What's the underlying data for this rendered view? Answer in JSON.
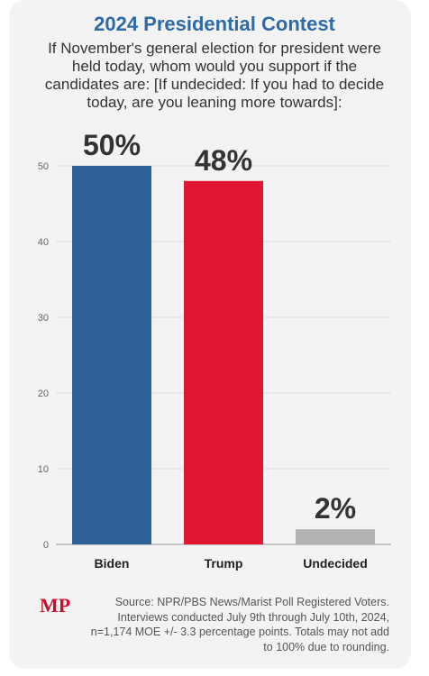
{
  "title": "2024 Presidential Contest",
  "subtitle": "If November's general election for president were held today, whom would you support if the candidates are: [If undecided: If you had to decide today, are you leaning more towards]:",
  "source": "Source: NPR/PBS News/Marist Poll Registered Voters. Interviews conducted July 9th through July 10th, 2024, n=1,174 MOE +/- 3.3 percentage points. Totals may not add to 100% due to rounding.",
  "logo": {
    "text": "MP",
    "color": "#c8102e"
  },
  "chart_data": {
    "type": "bar",
    "categories": [
      "Biden",
      "Trump",
      "Undecided"
    ],
    "values": [
      50,
      48,
      2
    ],
    "data_labels": [
      "50%",
      "48%",
      "2%"
    ],
    "colors": [
      "#2e6296",
      "#e0152f",
      "#b3b3b3"
    ],
    "yticks": [
      0,
      10,
      20,
      30,
      40,
      50
    ],
    "ylim": [
      0,
      50
    ],
    "grid": true,
    "legend": "none"
  }
}
